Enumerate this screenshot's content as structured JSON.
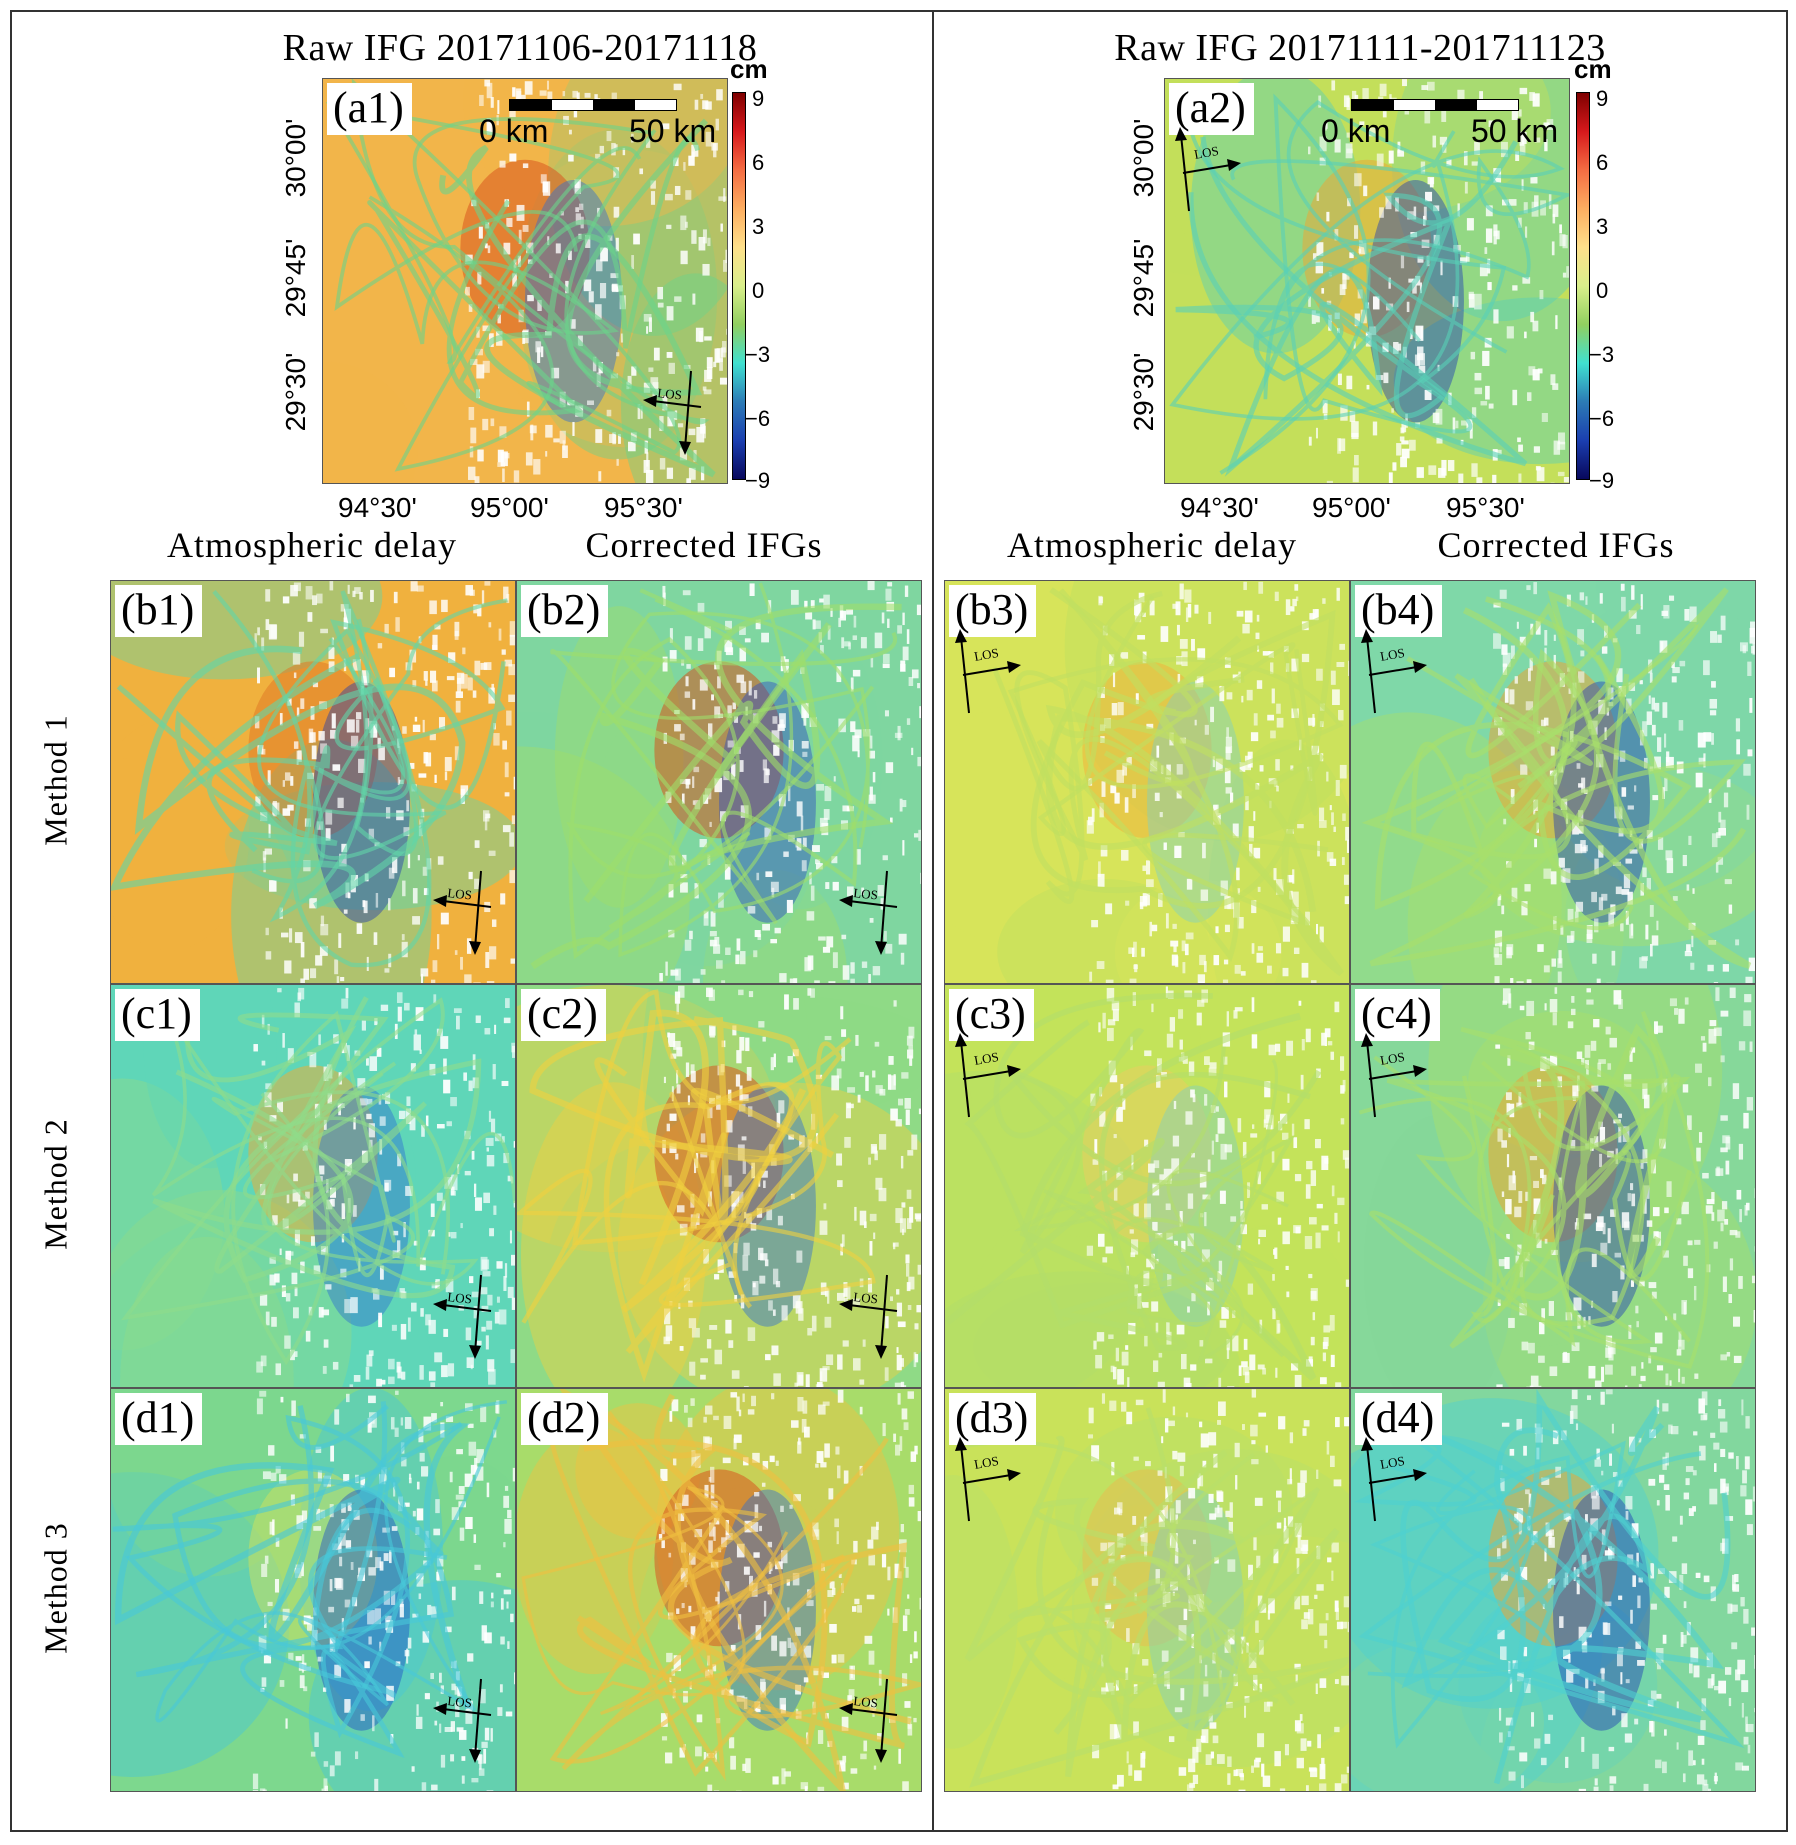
{
  "titles": {
    "left": "Raw IFG 20171106-20171118",
    "right": "Raw IFG 20171111-201711123"
  },
  "colorbar": {
    "unit": "cm",
    "ticks": [
      "9",
      "6",
      "3",
      "0",
      "−3",
      "−6",
      "−9"
    ],
    "colors": [
      "#7f0000",
      "#d7191c",
      "#f46d43",
      "#fdae61",
      "#fee08b",
      "#d9ef8b",
      "#91cf60",
      "#40e0d0",
      "#2c7bb6",
      "#1b3fb0",
      "#08085c"
    ]
  },
  "scalebar": {
    "start_label": "0 km",
    "end_label": "50 km"
  },
  "axes": {
    "lon_ticks": [
      "94°30'",
      "95°00'",
      "95°30'"
    ],
    "lat_ticks": [
      "30°00'",
      "29°45'",
      "29°30'"
    ]
  },
  "column_titles": {
    "delay_left": "Atmospheric delay",
    "corrected_left": "Corrected IFGs",
    "delay_right": "Atmospheric delay",
    "corrected_right": "Corrected IFGs"
  },
  "row_labels": [
    "Method 1",
    "Method 2",
    "Method 3"
  ],
  "los_label": "LOS",
  "panels": {
    "a1": "(a1)",
    "a2": "(a2)",
    "b1": "(b1)",
    "b2": "(b2)",
    "b3": "(b3)",
    "b4": "(b4)",
    "c1": "(c1)",
    "c2": "(c2)",
    "c3": "(c3)",
    "c4": "(c4)",
    "d1": "(d1)",
    "d2": "(d2)",
    "d3": "(d3)",
    "d4": "(d4)"
  },
  "panel_palettes": {
    "a1": {
      "base": "#f2b54a",
      "hot": "#d9551f",
      "cold": "#2f6fd1",
      "accent": "#6ad38a"
    },
    "a2": {
      "base": "#c4df5a",
      "hot": "#e8a93a",
      "cold": "#1f3fb5",
      "accent": "#58d0b8"
    },
    "b1": {
      "base": "#f0b13e",
      "hot": "#e07a26",
      "cold": "#233fb0",
      "accent": "#60d6a8"
    },
    "b2": {
      "base": "#7fd6a0",
      "hot": "#d4551e",
      "cold": "#2d4ec4",
      "accent": "#9fde6a"
    },
    "b3": {
      "base": "#d7e45a",
      "hot": "#f0b43c",
      "cold": "#7fd0c0",
      "accent": "#bfe060"
    },
    "b4": {
      "base": "#7fd8a8",
      "hot": "#e8a83a",
      "cold": "#1f3fb5",
      "accent": "#a8df6a"
    },
    "c1": {
      "base": "#5fd6b8",
      "hot": "#e8b03a",
      "cold": "#2f70d0",
      "accent": "#8fdc8a"
    },
    "c2": {
      "base": "#8fda86",
      "hot": "#d85a20",
      "cold": "#2f6fd1",
      "accent": "#f0d040"
    },
    "c3": {
      "base": "#c4e35a",
      "hot": "#e8d060",
      "cold": "#7fd0c0",
      "accent": "#b2de6a"
    },
    "c4": {
      "base": "#86d89a",
      "hot": "#e8a83a",
      "cold": "#1f3fb5",
      "accent": "#a8df6a"
    },
    "d1": {
      "base": "#7dd88e",
      "hot": "#c8e060",
      "cold": "#1f4fc8",
      "accent": "#48c8d8"
    },
    "d2": {
      "base": "#a8dc6a",
      "hot": "#d9551f",
      "cold": "#2f6fd1",
      "accent": "#f0c040"
    },
    "d3": {
      "base": "#c9e25a",
      "hot": "#e6c050",
      "cold": "#7fd0c0",
      "accent": "#b8df6a"
    },
    "d4": {
      "base": "#82d79e",
      "hot": "#e8a83a",
      "cold": "#1f3fb5",
      "accent": "#4fd0d0"
    }
  }
}
